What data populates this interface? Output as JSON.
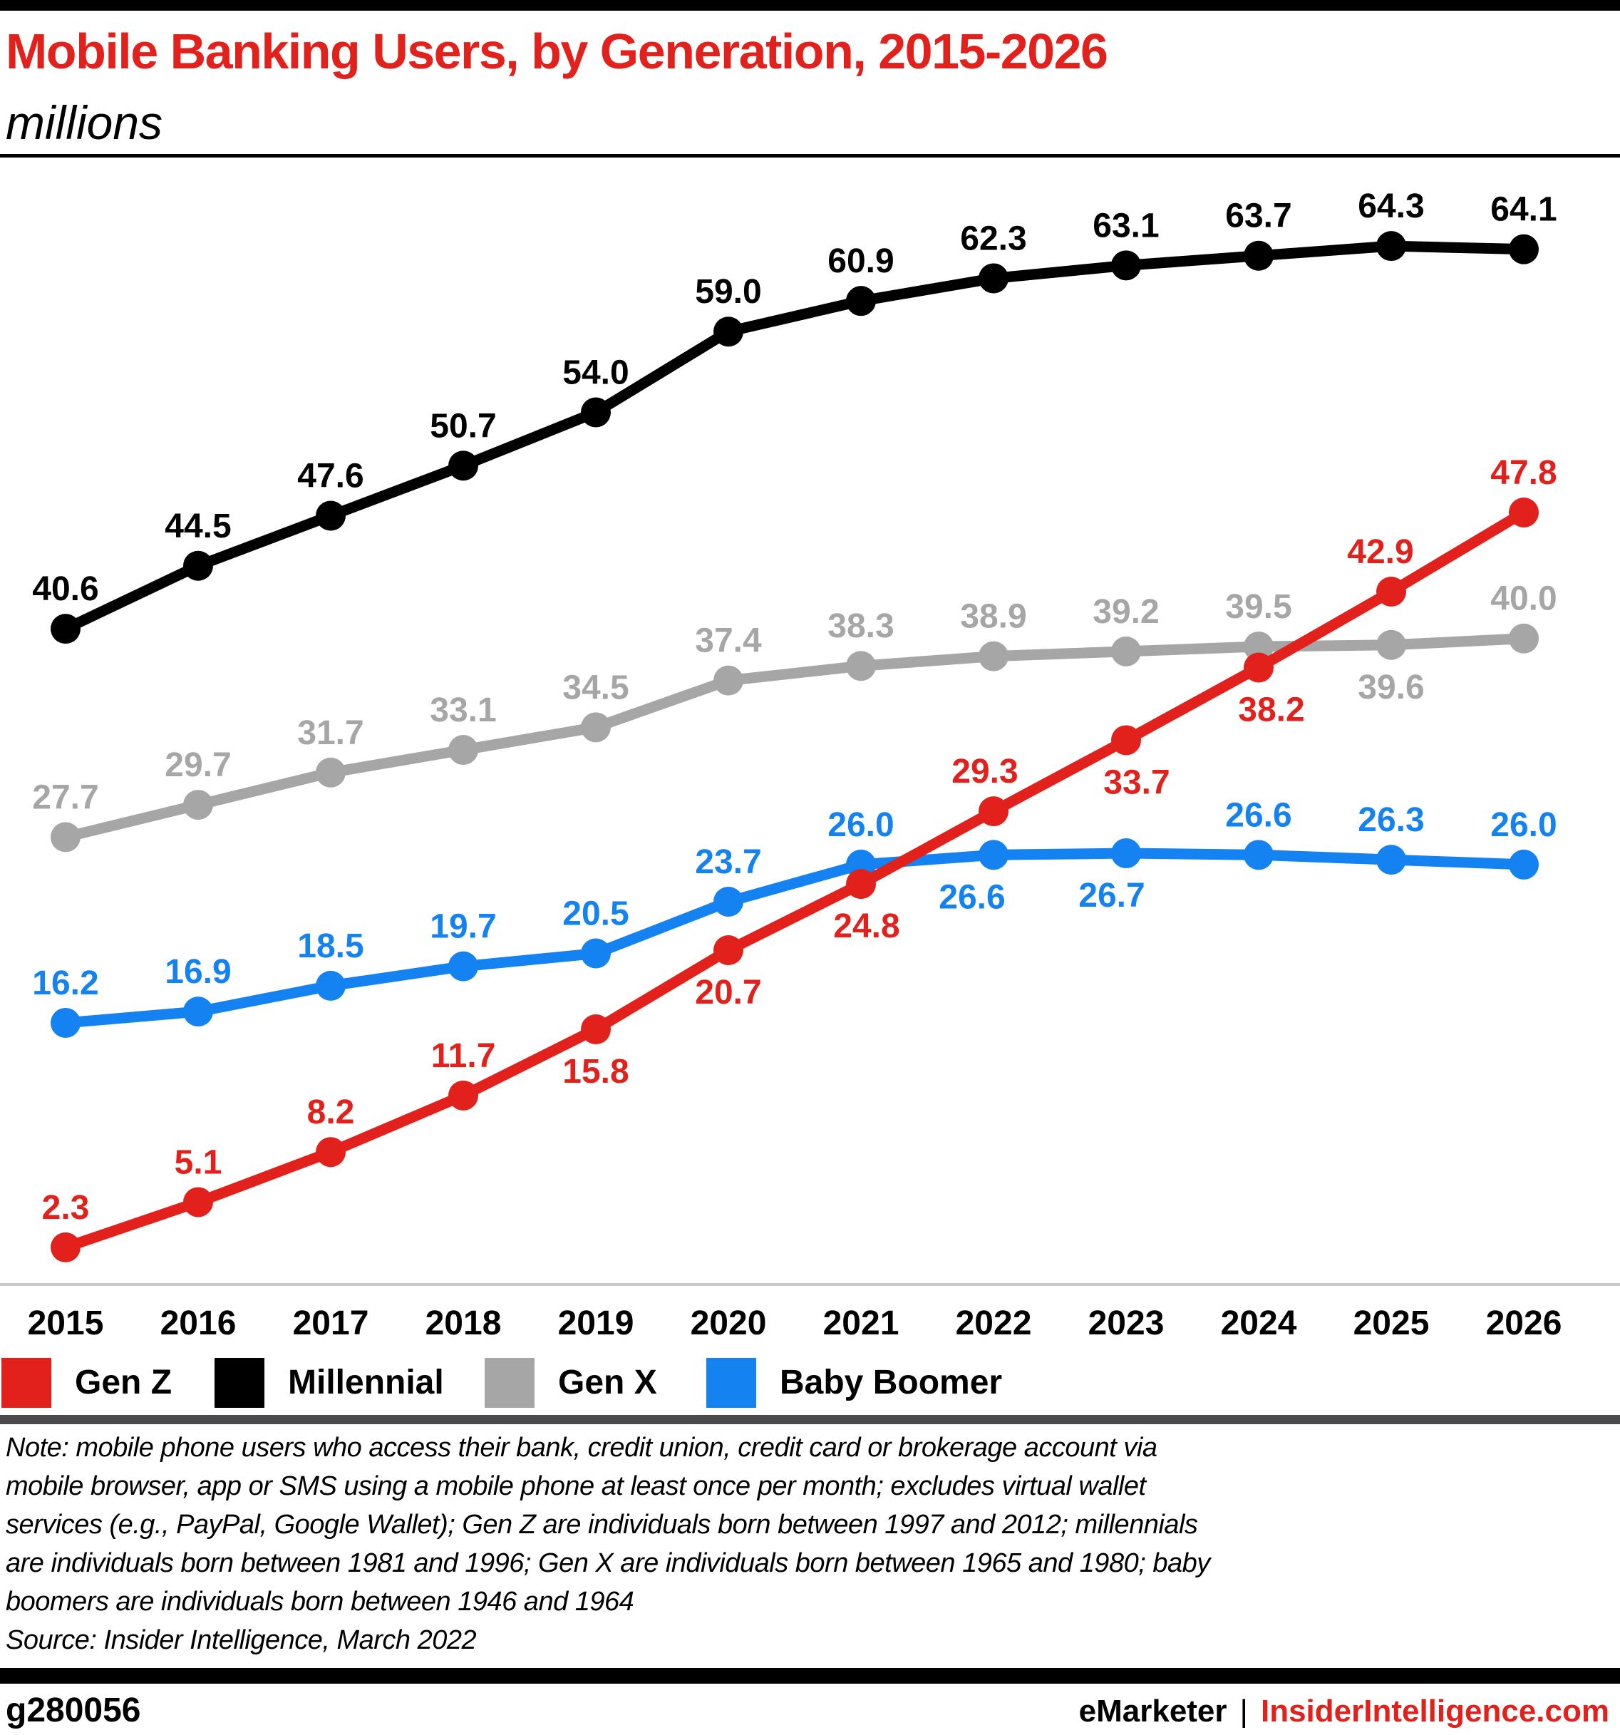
{
  "title": "Mobile Banking Users, by Generation, 2015-2026",
  "subtitle": "millions",
  "chart_data": {
    "type": "line",
    "x": [
      "2015",
      "2016",
      "2017",
      "2018",
      "2019",
      "2020",
      "2021",
      "2022",
      "2023",
      "2024",
      "2025",
      "2026"
    ],
    "ylim": [
      0,
      70
    ],
    "grid": false,
    "legend_position": "bottom",
    "value_format": "one_decimal",
    "series": [
      {
        "name": "Millennial",
        "color": "#000000",
        "values": [
          40.6,
          44.5,
          47.6,
          50.7,
          54.0,
          59.0,
          60.9,
          62.3,
          63.1,
          63.7,
          64.3,
          64.1
        ],
        "label_placement": [
          "above",
          "above",
          "above",
          "above",
          "above",
          "above",
          "above",
          "above",
          "above",
          "above",
          "above",
          "above"
        ],
        "label_dx": [
          0,
          0,
          0,
          0,
          0,
          0,
          0,
          0,
          0,
          0,
          0,
          0
        ]
      },
      {
        "name": "Gen X",
        "color": "#a6a6a6",
        "values": [
          27.7,
          29.7,
          31.7,
          33.1,
          34.5,
          37.4,
          38.3,
          38.9,
          39.2,
          39.5,
          39.6,
          40.0
        ],
        "label_placement": [
          "above",
          "above",
          "above",
          "above",
          "above",
          "above",
          "above",
          "above",
          "above",
          "above",
          "below",
          "above"
        ],
        "label_dx": [
          0,
          0,
          0,
          0,
          0,
          0,
          0,
          0,
          0,
          0,
          0,
          0
        ]
      },
      {
        "name": "Baby Boomer",
        "color": "#1482f0",
        "values": [
          16.2,
          16.9,
          18.5,
          19.7,
          20.5,
          23.7,
          26.0,
          26.6,
          26.7,
          26.6,
          26.3,
          26.0
        ],
        "label_placement": [
          "above",
          "above",
          "above",
          "above",
          "above",
          "above",
          "above",
          "below",
          "below",
          "above",
          "above",
          "above"
        ],
        "label_dx": [
          0,
          0,
          0,
          0,
          0,
          0,
          0,
          -30,
          -20,
          0,
          0,
          0
        ]
      },
      {
        "name": "Gen Z",
        "color": "#e2211c",
        "values": [
          2.3,
          5.1,
          8.2,
          11.7,
          15.8,
          20.7,
          24.8,
          29.3,
          33.7,
          38.2,
          42.9,
          47.8
        ],
        "label_placement": [
          "above",
          "above",
          "above",
          "above",
          "below",
          "below",
          "below",
          "above",
          "below",
          "below",
          "above",
          "above"
        ],
        "label_dx": [
          0,
          0,
          0,
          0,
          0,
          0,
          8,
          -12,
          15,
          18,
          -15,
          0
        ]
      }
    ]
  },
  "legend": {
    "items": [
      {
        "label": "Gen Z",
        "color": "#e2211c"
      },
      {
        "label": "Millennial",
        "color": "#000000"
      },
      {
        "label": "Gen X",
        "color": "#a6a6a6"
      },
      {
        "label": "Baby Boomer",
        "color": "#1482f0"
      }
    ]
  },
  "notes": {
    "lines": [
      "Note: mobile phone users who access their bank, credit union, credit card or brokerage account via",
      "mobile browser, app or SMS using a mobile phone at least once per month; excludes virtual wallet",
      "services (e.g., PayPal, Google Wallet); Gen Z are individuals born between 1997 and 2012; millennials",
      "are individuals born between 1981 and 1996; Gen X are individuals born between 1965 and 1980; baby",
      "boomers are individuals born between 1946 and 1964"
    ],
    "source": "Source: Insider Intelligence, March 2022"
  },
  "footer": {
    "chart_id": "g280056",
    "brand": "eMarketer",
    "separator": "|",
    "site": "InsiderIntelligence.com"
  },
  "colors": {
    "accent_red": "#e2211c",
    "axis_line": "#c9c9c9",
    "dark_divider": "#4a4a4c",
    "black": "#000000"
  }
}
